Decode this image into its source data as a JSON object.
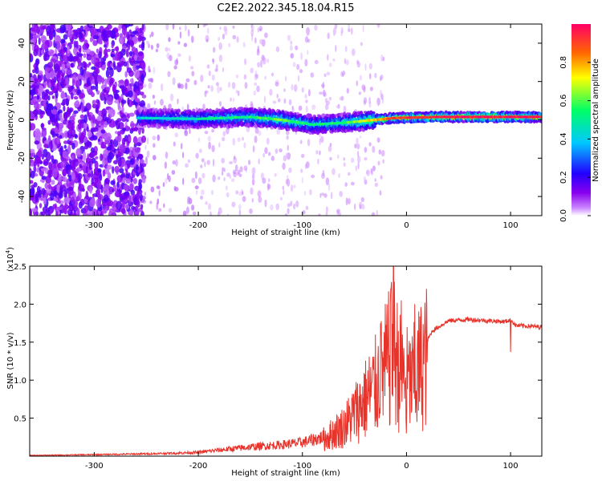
{
  "title": "C2E2.2022.345.18.04.R15",
  "chart_data": [
    {
      "type": "heatmap",
      "title": "C2E2.2022.345.18.04.R15",
      "xlabel": "Height of straight line (km)",
      "ylabel": "Frequency (Hz)",
      "xlim": [
        -362,
        130
      ],
      "ylim": [
        -50,
        50
      ],
      "xticks": [
        -300,
        -200,
        -100,
        0,
        100
      ],
      "yticks": [
        -40,
        -20,
        0,
        20,
        40
      ],
      "colorbar": {
        "label": "Normalized spectral amplitude",
        "range": [
          0,
          1
        ],
        "ticks": [
          "0.0",
          "0.2",
          "0.4",
          "0.6",
          "0.8"
        ],
        "tick_values": [
          0.0,
          0.2,
          0.4,
          0.6,
          0.8
        ],
        "colors": [
          "#ffffff",
          "#cc88ff",
          "#8800ee",
          "#2200ff",
          "#00c8ff",
          "#00ff66",
          "#ffff00",
          "#ff6600",
          "#ff0066"
        ]
      },
      "ridge": [
        {
          "x": -260,
          "f": 1.0,
          "amp": 0.35
        },
        {
          "x": -200,
          "f": 0.5,
          "amp": 0.42
        },
        {
          "x": -150,
          "f": 1.5,
          "amp": 0.48
        },
        {
          "x": -120,
          "f": 0.0,
          "amp": 0.55
        },
        {
          "x": -90,
          "f": -2.5,
          "amp": 0.45
        },
        {
          "x": -60,
          "f": -1.5,
          "amp": 0.5
        },
        {
          "x": -30,
          "f": 0.0,
          "amp": 0.7
        },
        {
          "x": -10,
          "f": 1.0,
          "amp": 0.85
        },
        {
          "x": 30,
          "f": 1.5,
          "amp": 0.9
        },
        {
          "x": 130,
          "f": 1.5,
          "amp": 0.92
        }
      ]
    },
    {
      "type": "line",
      "xlabel": "Height of straight line (km)",
      "ylabel": "SNR (10 * v/v)",
      "scale_label": "(x10",
      "scale_exp": "4",
      "scale_close": ")",
      "xlim": [
        -362,
        130
      ],
      "ylim": [
        0,
        2.5
      ],
      "xticks": [
        -300,
        -200,
        -100,
        0,
        100
      ],
      "yticks": [
        "0.5",
        "1.0",
        "1.5",
        "2.0",
        "2.5"
      ],
      "ytick_values": [
        0.5,
        1.0,
        1.5,
        2.0,
        2.5
      ],
      "color": "#e8332b",
      "series": [
        {
          "name": "SNR",
          "x": [
            -362,
            -300,
            -250,
            -220,
            -200,
            -180,
            -150,
            -120,
            -100,
            -80,
            -60,
            -50,
            -40,
            -30,
            -20,
            -12,
            -5,
            5,
            15,
            25,
            40,
            60,
            80,
            95,
            100,
            105,
            130
          ],
          "y": [
            0.01,
            0.02,
            0.03,
            0.04,
            0.05,
            0.08,
            0.12,
            0.15,
            0.18,
            0.25,
            0.45,
            0.65,
            0.85,
            1.05,
            1.35,
            1.6,
            1.2,
            1.1,
            1.4,
            1.65,
            1.78,
            1.8,
            1.78,
            1.77,
            1.8,
            1.72,
            1.7
          ]
        }
      ],
      "spikes": [
        {
          "x": -12.5,
          "y": 2.5
        },
        {
          "x": -15,
          "y": 2.2
        },
        {
          "x": -25,
          "y": 1.75
        },
        {
          "x": -5,
          "y": 2.05
        },
        {
          "x": 8,
          "y": 2.0
        },
        {
          "x": 0,
          "y": 0.3
        },
        {
          "x": 10,
          "y": 0.45
        },
        {
          "x": -45,
          "y": 0.95
        },
        {
          "x": 100,
          "y": 1.37
        }
      ]
    }
  ]
}
